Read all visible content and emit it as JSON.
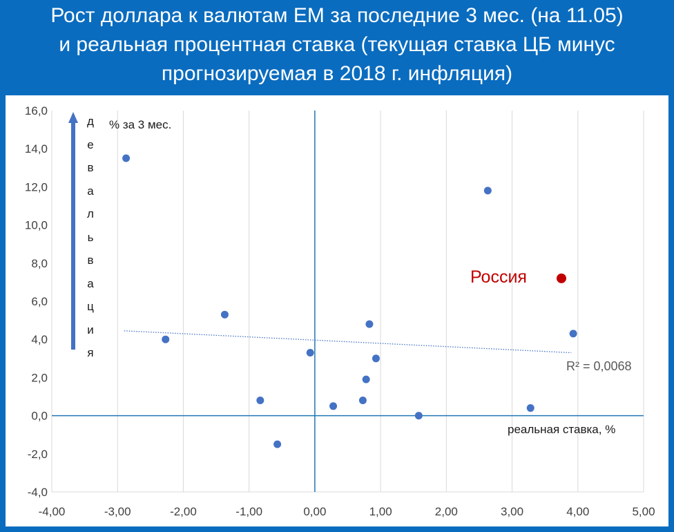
{
  "title_lines": [
    "Рост доллара к валютам ЕМ за последние 3 мес. (на 11.05)",
    "и реальная процентная ставка (текущая ставка ЦБ минус",
    "прогнозируемая в 2018 г. инфляция)"
  ],
  "chart_data": {
    "type": "scatter",
    "title": "Рост доллара к валютам ЕМ за последние 3 мес. (на 11.05) и реальная процентная ставка (текущая ставка ЦБ минус прогнозируемая в 2018 г. инфляция)",
    "xlabel": "реальная ставка, %",
    "ylabel": "% за 3 мес.",
    "y_arrow_label": "девальвация",
    "xlim": [
      -4,
      5
    ],
    "ylim": [
      -4,
      16
    ],
    "x_ticks": [
      "-4,00",
      "-3,00",
      "-2,00",
      "-1,00",
      "0,00",
      "1,00",
      "2,00",
      "3,00",
      "4,00",
      "5,00"
    ],
    "y_ticks": [
      "-4,0",
      "-2,0",
      "0,0",
      "2,0",
      "4,0",
      "6,0",
      "8,0",
      "10,0",
      "12,0",
      "14,0",
      "16,0"
    ],
    "x_tick_values": [
      -4,
      -3,
      -2,
      -1,
      0,
      1,
      2,
      3,
      4,
      5
    ],
    "y_tick_values": [
      -4,
      -2,
      0,
      2,
      4,
      6,
      8,
      10,
      12,
      14,
      16
    ],
    "grid": "vertical",
    "point_color": "#4472c4",
    "highlight_color": "#c00000",
    "axis_color": "#1f77b4",
    "points": [
      {
        "x": -2.87,
        "y": 13.5
      },
      {
        "x": -2.27,
        "y": 4.0
      },
      {
        "x": -1.37,
        "y": 5.3
      },
      {
        "x": -0.83,
        "y": 0.8
      },
      {
        "x": -0.57,
        "y": -1.5
      },
      {
        "x": -0.07,
        "y": 3.3
      },
      {
        "x": 0.28,
        "y": 0.5
      },
      {
        "x": 0.73,
        "y": 0.8
      },
      {
        "x": 0.78,
        "y": 1.9
      },
      {
        "x": 0.83,
        "y": 4.8
      },
      {
        "x": 0.93,
        "y": 3.0
      },
      {
        "x": 1.58,
        "y": 0.0
      },
      {
        "x": 2.63,
        "y": 11.8
      },
      {
        "x": 3.28,
        "y": 0.4
      },
      {
        "x": 3.93,
        "y": 4.3
      }
    ],
    "highlight": {
      "label": "Россия",
      "x": 3.75,
      "y": 7.2
    },
    "trendline": {
      "x0": -2.9,
      "y0": 4.45,
      "x1": 3.9,
      "y1": 3.3,
      "r2_label": "R² = 0,0068"
    }
  }
}
